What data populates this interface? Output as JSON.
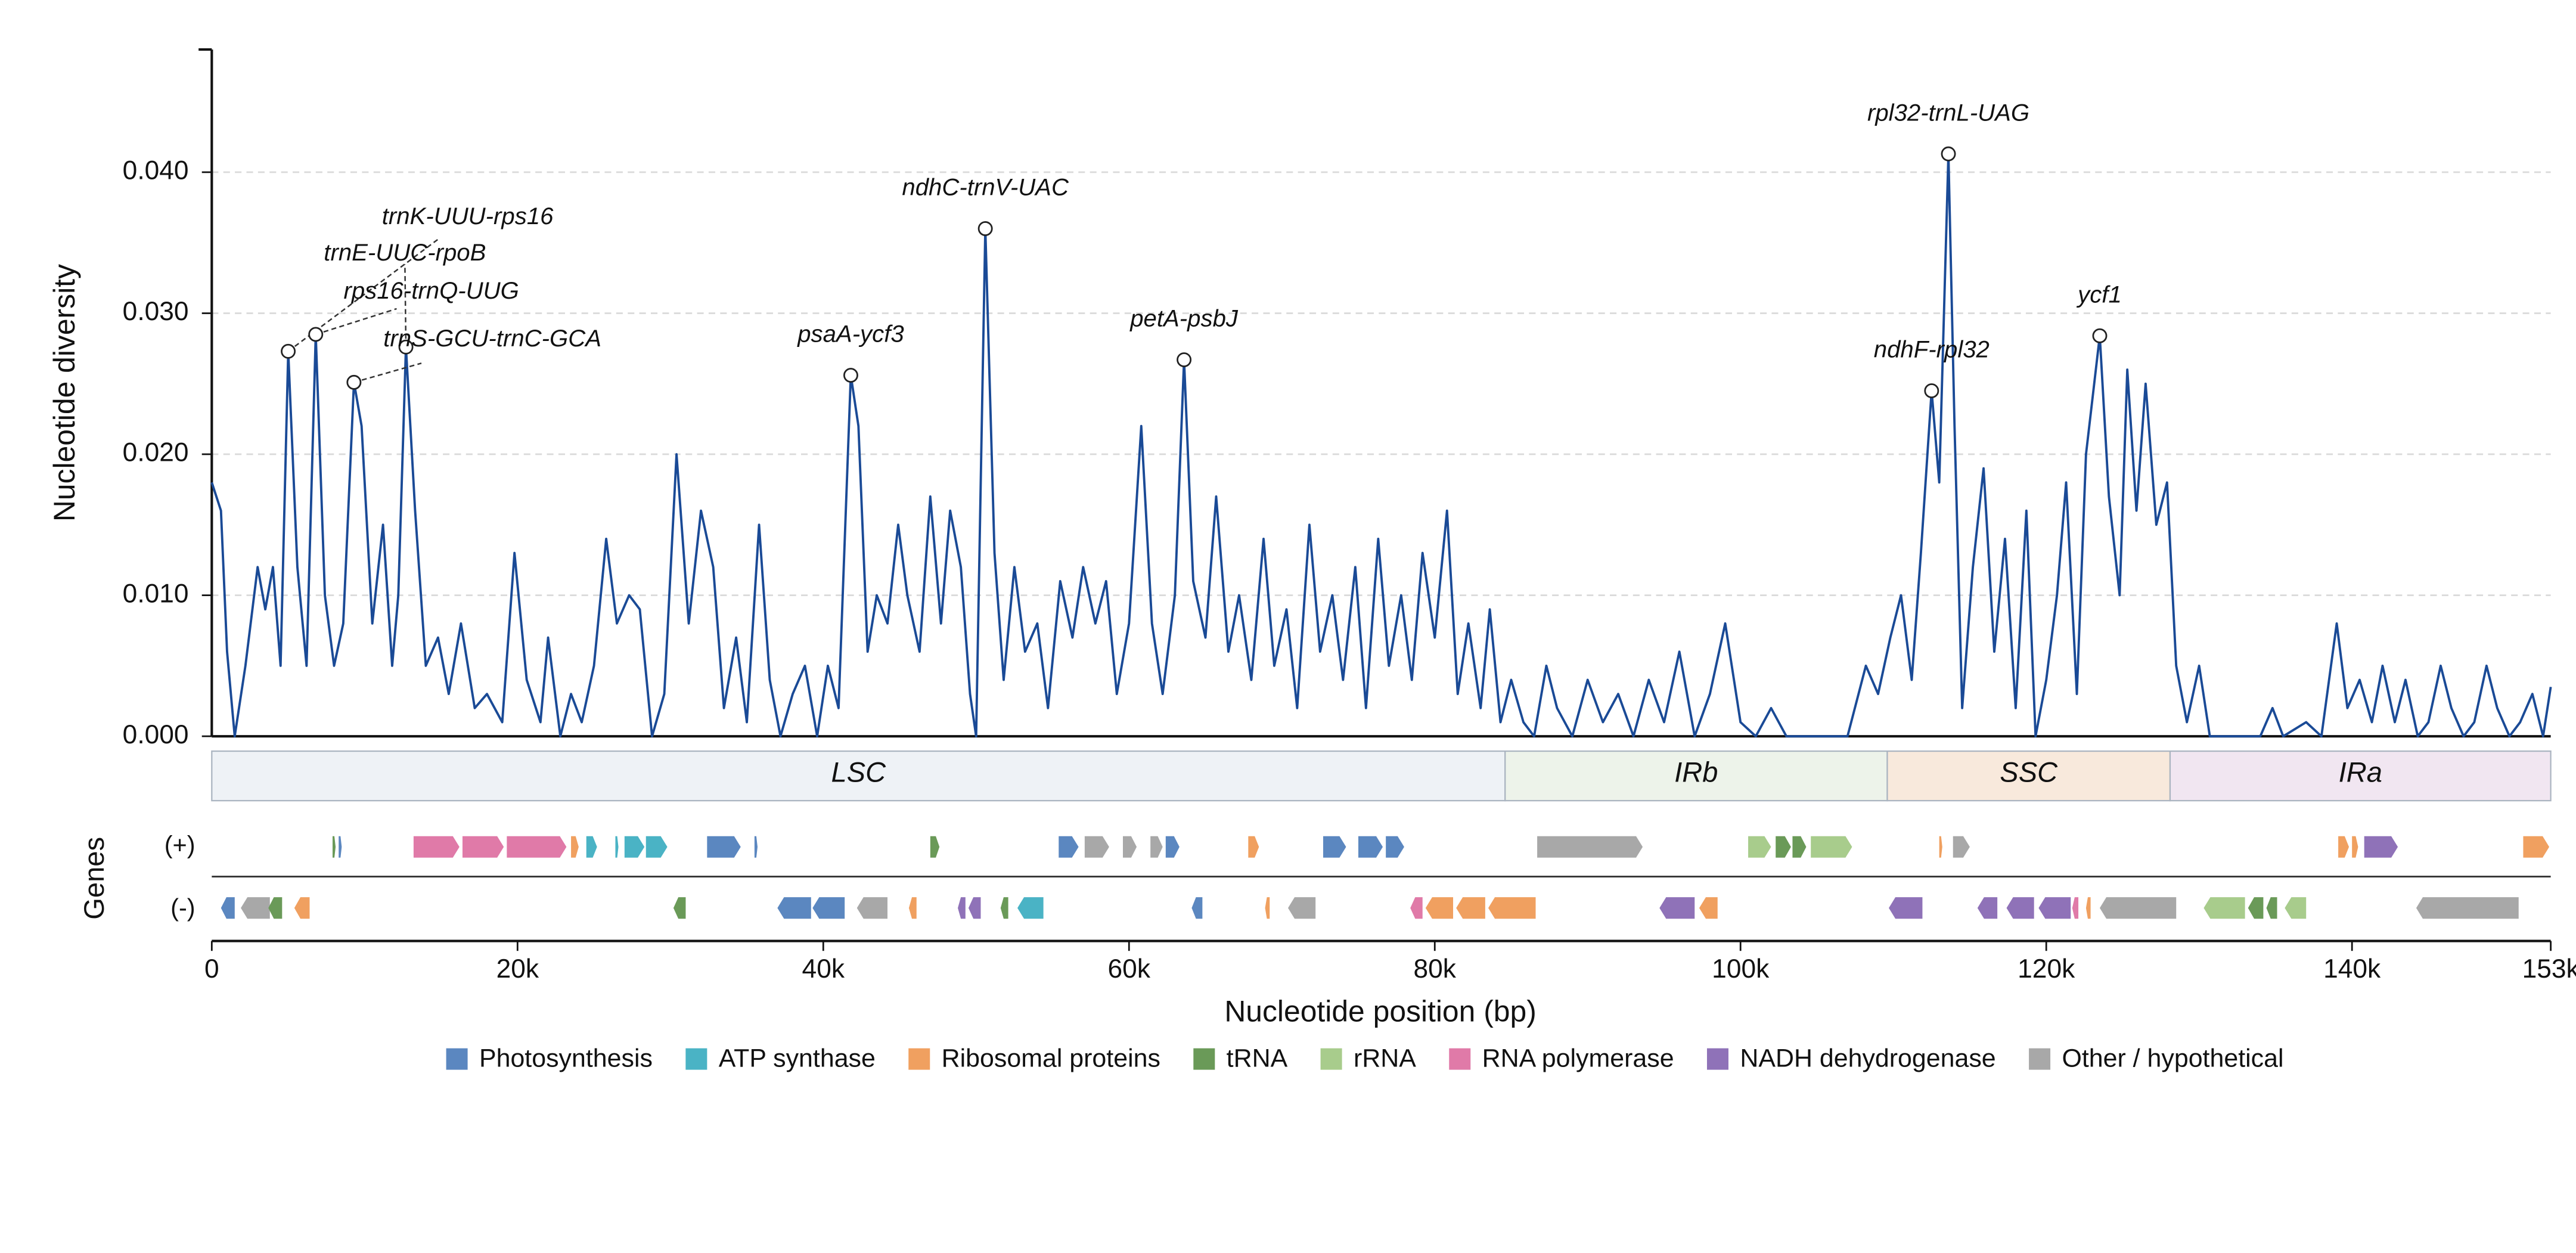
{
  "chart_data": {
    "type": "line",
    "y_label": "Nucleotide diversity",
    "x_label": "Nucleotide position (bp)",
    "color": "#1a4a96",
    "xlim": [
      0,
      153000
    ],
    "ylim": [
      0,
      0.0487
    ],
    "grid": true,
    "xticks": [
      0,
      {
        "value": 20000,
        "label": "20k"
      },
      {
        "value": 40000,
        "label": "40k"
      },
      {
        "value": 60000,
        "label": "60k"
      },
      {
        "value": 80000,
        "label": "80k"
      },
      {
        "value": 100000,
        "label": "100k"
      },
      {
        "value": 120000,
        "label": "120k"
      },
      {
        "value": 140000,
        "label": "140k"
      },
      {
        "value": 153000,
        "label": "153k"
      }
    ],
    "yticks": [
      {
        "value": 0,
        "label": "0.000"
      },
      {
        "value": 0.01,
        "label": "0.010"
      },
      {
        "value": 0.02,
        "label": "0.020"
      },
      {
        "value": 0.03,
        "label": "0.030"
      },
      {
        "value": 0.04,
        "label": "0.040"
      }
    ],
    "x": [
      0,
      600,
      1000,
      1500,
      2200,
      3000,
      3500,
      4000,
      4500,
      5000,
      5600,
      6200,
      6800,
      7400,
      8000,
      8600,
      9300,
      9800,
      10500,
      11200,
      11800,
      12200,
      12700,
      13300,
      14000,
      14800,
      15500,
      16300,
      17200,
      18000,
      19000,
      19800,
      20600,
      21500,
      22000,
      22800,
      23500,
      24200,
      25000,
      25800,
      26500,
      27300,
      28000,
      28800,
      29600,
      30400,
      31200,
      32000,
      32800,
      33500,
      34300,
      35000,
      35800,
      36500,
      37200,
      38000,
      38800,
      39600,
      40300,
      41000,
      41800,
      42300,
      42900,
      43500,
      44200,
      44900,
      45500,
      46300,
      47000,
      47700,
      48300,
      49000,
      49600,
      50000,
      50600,
      51200,
      51800,
      52500,
      53200,
      54000,
      54700,
      55500,
      56300,
      57000,
      57800,
      58500,
      59200,
      60000,
      60800,
      61500,
      62200,
      63000,
      63600,
      64200,
      65000,
      65700,
      66500,
      67200,
      68000,
      68800,
      69500,
      70300,
      71000,
      71800,
      72500,
      73300,
      74000,
      74800,
      75500,
      76300,
      77000,
      77800,
      78500,
      79200,
      80000,
      80800,
      81500,
      82200,
      83000,
      83600,
      84300,
      85000,
      85800,
      86500,
      87300,
      88000,
      89000,
      90000,
      91000,
      92000,
      93000,
      94000,
      95000,
      96000,
      97000,
      98000,
      99000,
      100000,
      101000,
      102000,
      103000,
      105000,
      107000,
      108200,
      109000,
      109800,
      110500,
      111200,
      111800,
      112500,
      113000,
      113600,
      114000,
      114500,
      115200,
      115900,
      116600,
      117300,
      118000,
      118700,
      119300,
      120000,
      120700,
      121300,
      122000,
      122600,
      123500,
      124100,
      124800,
      125300,
      125900,
      126500,
      127200,
      127900,
      128500,
      129200,
      130000,
      130700,
      132000,
      134000,
      134800,
      135500,
      137000,
      138000,
      139000,
      139700,
      140500,
      141300,
      142000,
      142800,
      143500,
      144300,
      145000,
      145800,
      146500,
      147300,
      148000,
      148800,
      149500,
      150300,
      151000,
      151800,
      152500,
      153000
    ],
    "values": [
      0.018,
      0.016,
      0.006,
      0,
      0.005,
      0.012,
      0.009,
      0.012,
      0.005,
      0.0273,
      0.012,
      0.005,
      0.0285,
      0.01,
      0.005,
      0.008,
      0.0251,
      0.022,
      0.008,
      0.015,
      0.005,
      0.01,
      0.0276,
      0.016,
      0.005,
      0.007,
      0.003,
      0.008,
      0.002,
      0.003,
      0.001,
      0.013,
      0.004,
      0.001,
      0.007,
      0,
      0.003,
      0.001,
      0.005,
      0.014,
      0.008,
      0.01,
      0.009,
      0,
      0.003,
      0.02,
      0.008,
      0.016,
      0.012,
      0.002,
      0.007,
      0.001,
      0.015,
      0.004,
      0,
      0.003,
      0.005,
      0,
      0.005,
      0.002,
      0.0256,
      0.022,
      0.006,
      0.01,
      0.008,
      0.015,
      0.01,
      0.006,
      0.017,
      0.008,
      0.016,
      0.012,
      0.003,
      0,
      0.036,
      0.013,
      0.004,
      0.012,
      0.006,
      0.008,
      0.002,
      0.011,
      0.007,
      0.012,
      0.008,
      0.011,
      0.003,
      0.008,
      0.022,
      0.008,
      0.003,
      0.01,
      0.0267,
      0.011,
      0.007,
      0.017,
      0.006,
      0.01,
      0.004,
      0.014,
      0.005,
      0.009,
      0.002,
      0.015,
      0.006,
      0.01,
      0.004,
      0.012,
      0.002,
      0.014,
      0.005,
      0.01,
      0.004,
      0.013,
      0.007,
      0.016,
      0.003,
      0.008,
      0.002,
      0.009,
      0.001,
      0.004,
      0.001,
      0,
      0.005,
      0.002,
      0,
      0.004,
      0.001,
      0.003,
      0,
      0.004,
      0.001,
      0.006,
      0,
      0.003,
      0.008,
      0.001,
      0,
      0.002,
      0,
      0,
      0,
      0.005,
      0.003,
      0.007,
      0.01,
      0.004,
      0.013,
      0.0245,
      0.018,
      0.0413,
      0.022,
      0.002,
      0.012,
      0.019,
      0.006,
      0.014,
      0.002,
      0.016,
      0,
      0.004,
      0.01,
      0.018,
      0.003,
      0.02,
      0.0284,
      0.017,
      0.01,
      0.026,
      0.016,
      0.025,
      0.015,
      0.018,
      0.005,
      0.001,
      0.005,
      0,
      0,
      0,
      0.002,
      0,
      0.001,
      0,
      0.008,
      0.002,
      0.004,
      0.001,
      0.005,
      0.001,
      0.004,
      0,
      0.001,
      0.005,
      0.002,
      0,
      0.001,
      0.005,
      0.002,
      0,
      0.001,
      0.003,
      0,
      0.0035
    ],
    "annotations": [
      {
        "x": 5000,
        "y": 0.0273,
        "label": "trnK-UUU-rps16"
      },
      {
        "x": 6800,
        "y": 0.0285,
        "label": "trnE-UUC-rpoB"
      },
      {
        "x": 9300,
        "y": 0.0251,
        "label": "rps16-trnQ-UUG"
      },
      {
        "x": 12700,
        "y": 0.0276,
        "label": "trnS-GCU-trnC-GCA"
      },
      {
        "x": 41800,
        "y": 0.0256,
        "label": "psaA-ycf3"
      },
      {
        "x": 50600,
        "y": 0.036,
        "label": "ndhC-trnV-UAC"
      },
      {
        "x": 63600,
        "y": 0.0267,
        "label": "petA-psbJ"
      },
      {
        "x": 112500,
        "y": 0.0245,
        "label": "ndhF-rpl32"
      },
      {
        "x": 113600,
        "y": 0.0413,
        "label": "rpl32-trnL-UAG"
      },
      {
        "x": 123500,
        "y": 0.0284,
        "label": "ycf1"
      }
    ],
    "regions": [
      {
        "name": "LSC",
        "start": 0,
        "end": 84600,
        "color": "#eef2f6"
      },
      {
        "name": "IRb",
        "start": 84600,
        "end": 109600,
        "color": "#edf3ea"
      },
      {
        "name": "SSC",
        "start": 109600,
        "end": 128100,
        "color": "#f8e9dc"
      },
      {
        "name": "IRa",
        "start": 128100,
        "end": 153000,
        "color": "#f1e6f1"
      }
    ],
    "gene_track": {
      "label": "Genes",
      "strands": [
        "(+)",
        "(-)"
      ],
      "plus": [
        [
          7900,
          8100,
          3
        ],
        [
          8300,
          8500,
          0
        ],
        [
          13200,
          16200,
          5
        ],
        [
          16400,
          19100,
          5
        ],
        [
          19300,
          23200,
          5
        ],
        [
          23500,
          24000,
          2
        ],
        [
          24500,
          25200,
          1
        ],
        [
          26400,
          26600,
          1
        ],
        [
          27000,
          28300,
          1
        ],
        [
          28400,
          29800,
          1
        ],
        [
          32400,
          34600,
          0
        ],
        [
          35500,
          35700,
          0
        ],
        [
          47000,
          47600,
          3
        ],
        [
          55400,
          56700,
          0
        ],
        [
          57100,
          58700,
          7
        ],
        [
          59600,
          60500,
          7
        ],
        [
          61400,
          62200,
          7
        ],
        [
          62400,
          63300,
          0
        ],
        [
          67800,
          68500,
          2
        ],
        [
          72700,
          74200,
          0
        ],
        [
          75000,
          76600,
          0
        ],
        [
          76800,
          78000,
          0
        ],
        [
          86700,
          93600,
          7
        ],
        [
          100500,
          102000,
          4
        ],
        [
          102300,
          103300,
          3
        ],
        [
          103400,
          104300,
          3
        ],
        [
          104600,
          107300,
          4
        ],
        [
          113000,
          113200,
          2
        ],
        [
          113900,
          115000,
          7
        ],
        [
          139100,
          139800,
          2
        ],
        [
          140000,
          140400,
          2
        ],
        [
          140800,
          143000,
          6
        ],
        [
          151200,
          152900,
          2
        ]
      ],
      "minus": [
        [
          600,
          1500,
          0
        ],
        [
          1900,
          3800,
          7
        ],
        [
          3700,
          4600,
          3
        ],
        [
          5400,
          6400,
          2
        ],
        [
          30200,
          31000,
          3
        ],
        [
          37000,
          39200,
          0
        ],
        [
          39300,
          41400,
          0
        ],
        [
          42200,
          44200,
          7
        ],
        [
          45600,
          46100,
          2
        ],
        [
          48800,
          49300,
          6
        ],
        [
          49500,
          50300,
          6
        ],
        [
          51600,
          52100,
          3
        ],
        [
          52700,
          54400,
          1
        ],
        [
          64100,
          64800,
          0
        ],
        [
          68900,
          69200,
          2
        ],
        [
          70400,
          72200,
          7
        ],
        [
          78400,
          79200,
          5
        ],
        [
          79400,
          81200,
          2
        ],
        [
          81400,
          83300,
          2
        ],
        [
          83500,
          86600,
          2
        ],
        [
          94700,
          97000,
          6
        ],
        [
          97300,
          98500,
          2
        ],
        [
          109700,
          111900,
          6
        ],
        [
          115500,
          116800,
          6
        ],
        [
          117400,
          119200,
          6
        ],
        [
          119500,
          121600,
          6
        ],
        [
          121700,
          122100,
          5
        ],
        [
          122600,
          122900,
          2
        ],
        [
          123500,
          128500,
          7
        ],
        [
          130300,
          133000,
          4
        ],
        [
          133200,
          134200,
          3
        ],
        [
          134400,
          135100,
          3
        ],
        [
          135600,
          137000,
          4
        ],
        [
          144200,
          150900,
          7
        ]
      ]
    },
    "legend": [
      {
        "name": "Photosynthesis",
        "color": "#5b87c0"
      },
      {
        "name": "ATP synthase",
        "color": "#4ab3c5"
      },
      {
        "name": "Ribosomal proteins",
        "color": "#f0a060"
      },
      {
        "name": "tRNA",
        "color": "#6a9a58"
      },
      {
        "name": "rRNA",
        "color": "#a8cc8c"
      },
      {
        "name": "RNA polymerase",
        "color": "#e07aa8"
      },
      {
        "name": "NADH dehydrogenase",
        "color": "#8f72b8"
      },
      {
        "name": "Other / hypothetical",
        "color": "#a8a8a8"
      }
    ]
  }
}
